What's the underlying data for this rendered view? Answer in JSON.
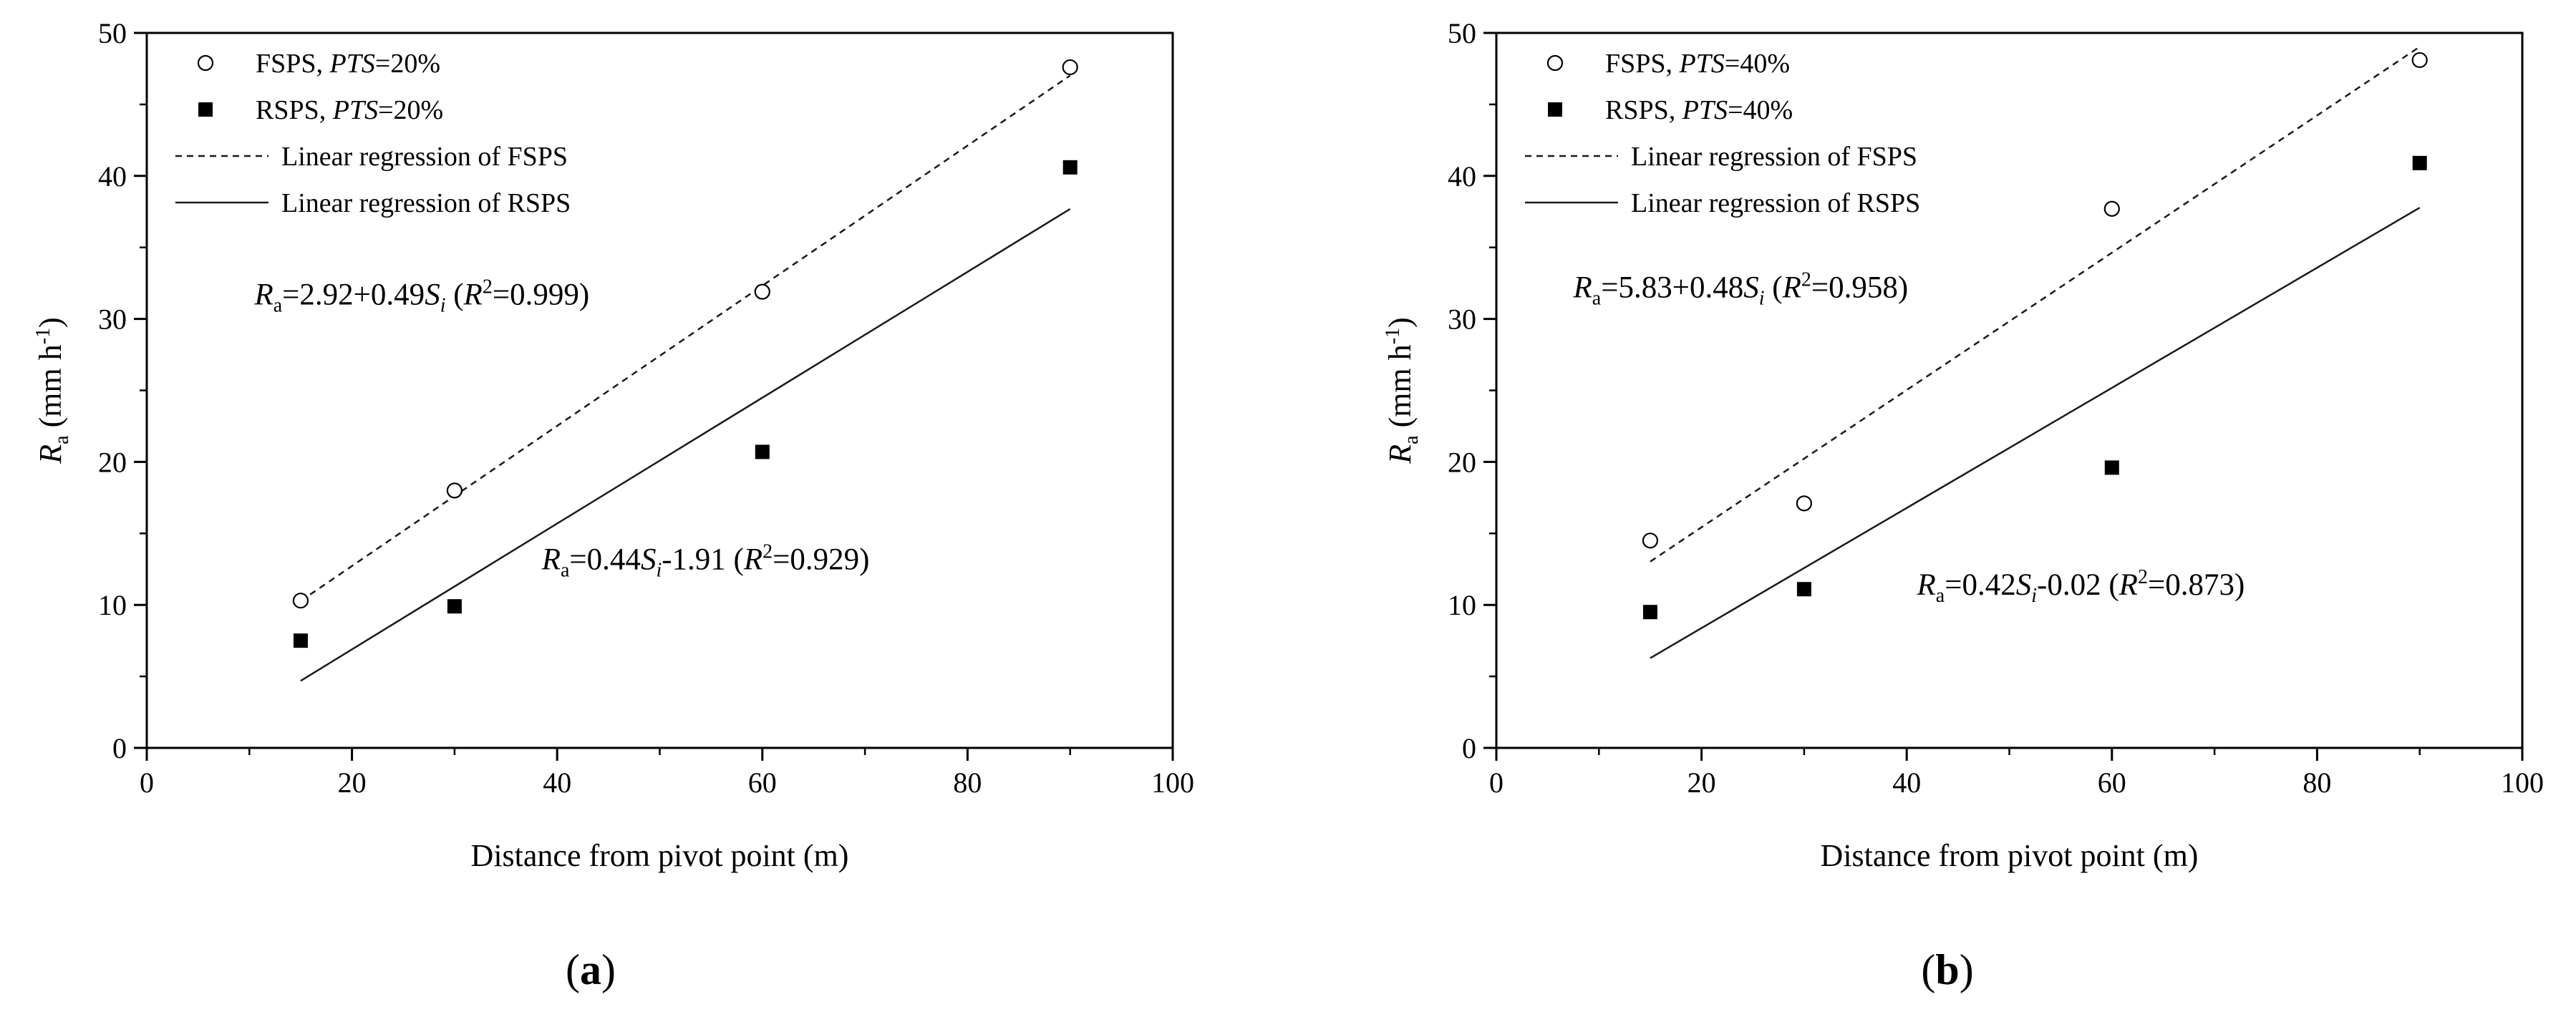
{
  "chart_data": [
    {
      "type": "scatter",
      "panel_label": "a",
      "xlabel": "Distance from pivot point (m)",
      "ylabel": {
        "main": "R",
        "sub": "a",
        "unit_pre": "(mm h",
        "unit_sup": "-1",
        "unit_post": ")"
      },
      "xlim": [
        0,
        100
      ],
      "ylim": [
        0,
        50
      ],
      "xticks": [
        "0",
        "20",
        "40",
        "60",
        "80",
        "100"
      ],
      "yticks": [
        "0",
        "10",
        "20",
        "30",
        "40",
        "50"
      ],
      "grid": false,
      "legend_position": "top-left",
      "series": [
        {
          "name": "FSPS, PTS=20%",
          "legend": {
            "pre": "FSPS, ",
            "it": "PTS",
            "post": "=20%"
          },
          "marker": "open-circle",
          "x": [
            15,
            30,
            60,
            90
          ],
          "values": [
            10.3,
            18.0,
            31.9,
            47.6
          ]
        },
        {
          "name": "RSPS, PTS=20%",
          "legend": {
            "pre": "RSPS, ",
            "it": "PTS",
            "post": "=20%"
          },
          "marker": "filled-square",
          "x": [
            15,
            30,
            60,
            90
          ],
          "values": [
            7.5,
            9.9,
            20.7,
            40.6
          ]
        }
      ],
      "fits": [
        {
          "name": "Linear regression of FSPS",
          "style": "dashed",
          "intercept": 2.92,
          "slope": 0.49,
          "x_range": [
            15,
            90
          ]
        },
        {
          "name": "Linear regression of RSPS",
          "style": "solid",
          "intercept": -1.91,
          "slope": 0.44,
          "x_range": [
            15,
            90
          ]
        }
      ],
      "annotations": [
        {
          "parts": [
            [
              "R",
              "i"
            ],
            [
              "a",
              "sub"
            ],
            [
              "=2.92+0.49",
              ""
            ],
            [
              "S",
              "i"
            ],
            [
              "i",
              "subi"
            ],
            [
              " (",
              ""
            ],
            [
              "R",
              "i"
            ],
            [
              "2",
              "sup"
            ],
            [
              "=0.999)",
              ""
            ]
          ],
          "at_data": [
            10.5,
            31
          ]
        },
        {
          "parts": [
            [
              "R",
              "i"
            ],
            [
              "a",
              "sub"
            ],
            [
              "=0.44",
              ""
            ],
            [
              "S",
              "i"
            ],
            [
              "i",
              "subi"
            ],
            [
              "-1.91 (",
              ""
            ],
            [
              "R",
              "i"
            ],
            [
              "2",
              "sup"
            ],
            [
              "=0.929)",
              ""
            ]
          ],
          "at_data": [
            38.5,
            12.5
          ]
        }
      ]
    },
    {
      "type": "scatter",
      "panel_label": "b",
      "xlabel": "Distance from pivot point (m)",
      "ylabel": {
        "main": "R",
        "sub": "a",
        "unit_pre": "(mm h",
        "unit_sup": "-1",
        "unit_post": ")"
      },
      "xlim": [
        0,
        100
      ],
      "ylim": [
        0,
        50
      ],
      "xticks": [
        "0",
        "20",
        "40",
        "60",
        "80",
        "100"
      ],
      "yticks": [
        "0",
        "10",
        "20",
        "30",
        "40",
        "50"
      ],
      "grid": false,
      "legend_position": "top-left",
      "series": [
        {
          "name": "FSPS, PTS=40%",
          "legend": {
            "pre": "FSPS, ",
            "it": "PTS",
            "post": "=40%"
          },
          "marker": "open-circle",
          "x": [
            15,
            30,
            60,
            90
          ],
          "values": [
            14.5,
            17.1,
            37.7,
            48.1
          ]
        },
        {
          "name": "RSPS, PTS=40%",
          "legend": {
            "pre": "RSPS, ",
            "it": "PTS",
            "post": "=40%"
          },
          "marker": "filled-square",
          "x": [
            15,
            30,
            60,
            90
          ],
          "values": [
            9.5,
            11.1,
            19.6,
            40.9
          ]
        }
      ],
      "fits": [
        {
          "name": "Linear regression of FSPS",
          "style": "dashed",
          "intercept": 5.83,
          "slope": 0.48,
          "x_range": [
            15,
            90
          ]
        },
        {
          "name": "Linear regression of RSPS",
          "style": "solid",
          "intercept": -0.02,
          "slope": 0.42,
          "x_range": [
            15,
            90
          ]
        }
      ],
      "annotations": [
        {
          "parts": [
            [
              "R",
              "i"
            ],
            [
              "a",
              "sub"
            ],
            [
              "=5.83+0.48",
              ""
            ],
            [
              "S",
              "i"
            ],
            [
              "i",
              "subi"
            ],
            [
              " (",
              ""
            ],
            [
              "R",
              "i"
            ],
            [
              "2",
              "sup"
            ],
            [
              "=0.958)",
              ""
            ]
          ],
          "at_data": [
            7.5,
            31.5
          ]
        },
        {
          "parts": [
            [
              "R",
              "i"
            ],
            [
              "a",
              "sub"
            ],
            [
              "=0.42",
              ""
            ],
            [
              "S",
              "i"
            ],
            [
              "i",
              "subi"
            ],
            [
              "-0.02 (",
              ""
            ],
            [
              "R",
              "i"
            ],
            [
              "2",
              "sup"
            ],
            [
              "=0.873)",
              ""
            ]
          ],
          "at_data": [
            41,
            10.7
          ]
        }
      ]
    }
  ]
}
